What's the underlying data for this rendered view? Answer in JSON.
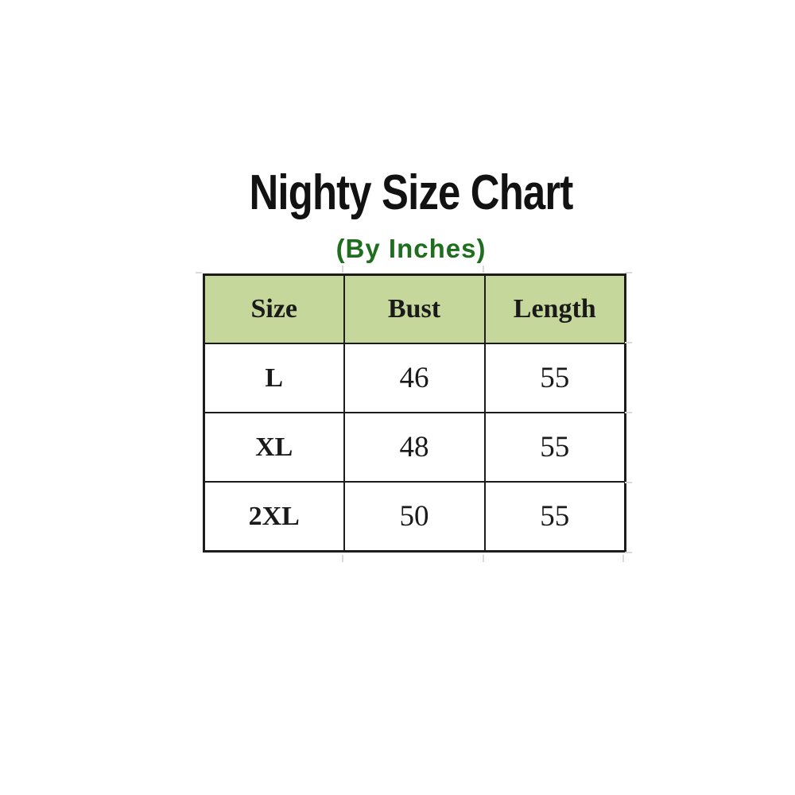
{
  "page": {
    "title": "Nighty Size Chart",
    "subtitle": "(By Inches)"
  },
  "table": {
    "headers": [
      "Size",
      "Bust",
      "Length"
    ],
    "rows": [
      [
        "L",
        "46",
        "55"
      ],
      [
        "XL",
        "48",
        "55"
      ],
      [
        "2XL",
        "50",
        "55"
      ]
    ]
  },
  "chart_data": {
    "type": "table",
    "title": "Nighty Size Chart",
    "subtitle": "(By Inches)",
    "units": "inches",
    "columns": [
      "Size",
      "Bust",
      "Length"
    ],
    "rows": [
      {
        "size": "L",
        "bust": 46,
        "length": 55
      },
      {
        "size": "XL",
        "bust": 48,
        "length": 55
      },
      {
        "size": "2XL",
        "bust": 50,
        "length": 55
      }
    ]
  },
  "colors": {
    "header_bg": "#c5d79b",
    "subtitle_green": "#1f6d1f",
    "border": "#1c1c1c",
    "gridline": "#d9d9d9"
  }
}
